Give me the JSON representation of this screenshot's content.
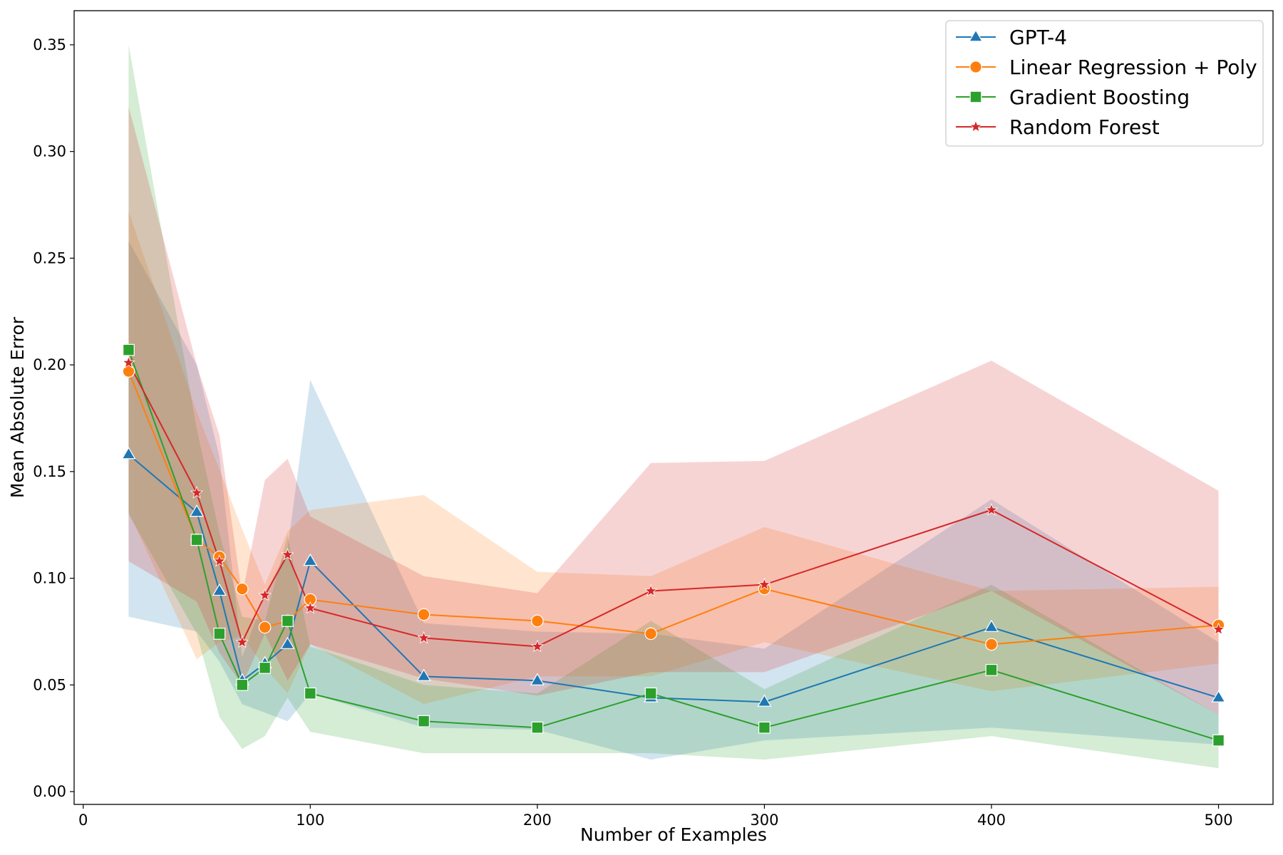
{
  "chart_data": {
    "type": "line",
    "title": "",
    "xlabel": "Number of Examples",
    "ylabel": "Mean Absolute Error",
    "xlim": [
      -4,
      524
    ],
    "ylim": [
      -0.006,
      0.366
    ],
    "xticks": [
      0,
      100,
      200,
      300,
      400,
      500
    ],
    "xtick_labels": [
      "0",
      "100",
      "200",
      "300",
      "400",
      "500"
    ],
    "yticks": [
      0.0,
      0.05,
      0.1,
      0.15,
      0.2,
      0.25,
      0.3,
      0.35
    ],
    "ytick_labels": [
      "0.00",
      "0.05",
      "0.10",
      "0.15",
      "0.20",
      "0.25",
      "0.30",
      "0.35"
    ],
    "grid": false,
    "legend_position": "top-right",
    "x": [
      20,
      50,
      60,
      70,
      80,
      90,
      100,
      150,
      200,
      250,
      300,
      400,
      500
    ],
    "series": [
      {
        "name": "GPT-4",
        "color": "#1f77b4",
        "marker": "triangle",
        "values": [
          0.158,
          0.131,
          0.094,
          0.052,
          0.06,
          0.069,
          0.108,
          0.054,
          0.052,
          0.044,
          0.042,
          0.077,
          0.044
        ],
        "lower": [
          0.082,
          0.075,
          0.061,
          0.041,
          0.037,
          0.033,
          0.046,
          0.03,
          0.029,
          0.015,
          0.024,
          0.03,
          0.022
        ],
        "upper": [
          0.258,
          0.2,
          0.157,
          0.063,
          0.092,
          0.114,
          0.193,
          0.079,
          0.075,
          0.074,
          0.067,
          0.137,
          0.07
        ]
      },
      {
        "name": "Linear Regression + Poly",
        "color": "#ff7f0e",
        "marker": "circle",
        "values": [
          0.197,
          0.118,
          0.11,
          0.095,
          0.077,
          0.08,
          0.09,
          0.083,
          0.08,
          0.074,
          0.095,
          0.069,
          0.078
        ],
        "lower": [
          0.131,
          0.062,
          0.07,
          0.073,
          0.058,
          0.046,
          0.069,
          0.041,
          0.054,
          0.054,
          0.07,
          0.047,
          0.06
        ],
        "upper": [
          0.272,
          0.178,
          0.151,
          0.123,
          0.097,
          0.122,
          0.132,
          0.139,
          0.103,
          0.101,
          0.124,
          0.094,
          0.096
        ]
      },
      {
        "name": "Gradient Boosting",
        "color": "#2ca02c",
        "marker": "square",
        "values": [
          0.207,
          0.118,
          0.074,
          0.05,
          0.058,
          0.08,
          0.046,
          0.033,
          0.03,
          0.046,
          0.03,
          0.057,
          0.024
        ],
        "lower": [
          0.13,
          0.074,
          0.035,
          0.02,
          0.026,
          0.044,
          0.028,
          0.018,
          0.018,
          0.018,
          0.015,
          0.026,
          0.011
        ],
        "upper": [
          0.35,
          0.17,
          0.121,
          0.082,
          0.08,
          0.12,
          0.068,
          0.05,
          0.046,
          0.08,
          0.048,
          0.097,
          0.036
        ]
      },
      {
        "name": "Random Forest",
        "color": "#d62728",
        "marker": "star",
        "values": [
          0.201,
          0.14,
          0.108,
          0.07,
          0.092,
          0.111,
          0.086,
          0.072,
          0.068,
          0.094,
          0.097,
          0.132,
          0.076
        ],
        "lower": [
          0.108,
          0.089,
          0.065,
          0.05,
          0.074,
          0.052,
          0.069,
          0.053,
          0.045,
          0.056,
          0.056,
          0.094,
          0.036
        ],
        "upper": [
          0.321,
          0.2,
          0.167,
          0.092,
          0.146,
          0.156,
          0.129,
          0.101,
          0.093,
          0.154,
          0.155,
          0.202,
          0.141
        ]
      }
    ]
  }
}
